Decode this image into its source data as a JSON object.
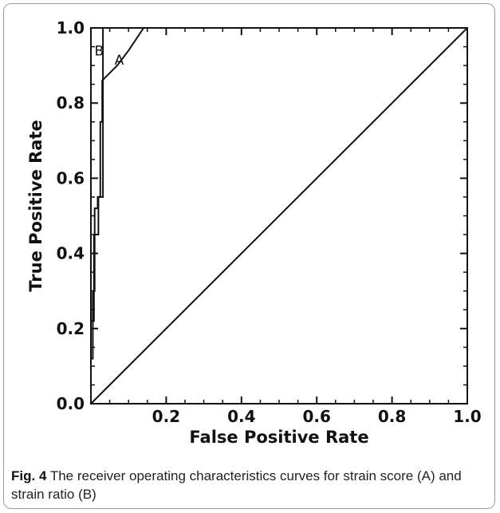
{
  "caption": {
    "label": "Fig. 4",
    "text": " The receiver operating characteristics curves for strain score (A) and strain ratio (B)"
  },
  "chart_data": {
    "type": "line",
    "xlabel": "False Positive Rate",
    "ylabel": "True Positive Rate",
    "xlim": [
      0,
      1
    ],
    "ylim": [
      0,
      1
    ],
    "x_ticks": [
      0.2,
      0.4,
      0.6,
      0.8,
      1.0
    ],
    "x_tick_labels": [
      "0.2",
      "0.4",
      "0.6",
      "0.8",
      "1.0"
    ],
    "y_ticks": [
      0.0,
      0.2,
      0.4,
      0.6,
      0.8,
      1.0
    ],
    "y_tick_labels": [
      "0.0",
      "0.2",
      "0.4",
      "0.6",
      "0.8",
      "1.0"
    ],
    "grid": false,
    "series": [
      {
        "name": "A",
        "color": "#111111",
        "x": [
          0.0,
          0.0,
          0.005,
          0.005,
          0.01,
          0.01,
          0.018,
          0.018,
          0.025,
          0.025,
          0.03,
          0.03,
          0.04,
          0.07,
          0.1,
          0.14,
          1.0
        ],
        "y": [
          0.0,
          0.12,
          0.12,
          0.3,
          0.3,
          0.52,
          0.52,
          0.55,
          0.55,
          0.75,
          0.75,
          0.86,
          0.87,
          0.9,
          0.94,
          1.0,
          1.0
        ]
      },
      {
        "name": "B",
        "color": "#111111",
        "x": [
          0.0,
          0.0,
          0.008,
          0.008,
          0.02,
          0.02,
          0.032,
          0.032,
          1.0
        ],
        "y": [
          0.0,
          0.22,
          0.22,
          0.45,
          0.45,
          0.55,
          0.55,
          1.0,
          1.0
        ]
      },
      {
        "name": "",
        "color": "#111111",
        "x": [
          0.0,
          1.0
        ],
        "y": [
          0.0,
          1.0
        ]
      }
    ],
    "curve_labels": [
      {
        "text": "A",
        "x": 0.075,
        "y": 0.915
      },
      {
        "text": "B",
        "x": 0.022,
        "y": 0.94
      }
    ]
  }
}
